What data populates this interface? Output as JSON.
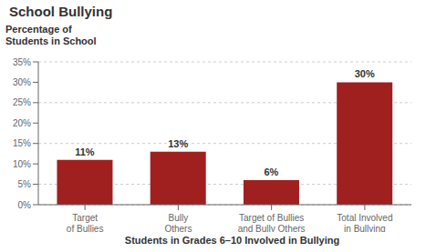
{
  "chart_data": {
    "type": "bar",
    "title": "School Bullying",
    "ylabel": "Percentage of\nStudents in School",
    "xlabel": "Students in Grades 6–10 Involved in Bullying",
    "categories": [
      "Target\nof Bullies",
      "Bully\nOthers",
      "Target of Bullies\nand Bully Others",
      "Total Involved\nin Bullying"
    ],
    "values": [
      11,
      13,
      6,
      30
    ],
    "value_labels": [
      "11%",
      "13%",
      "6%",
      "30%"
    ],
    "data_labels": true,
    "color": "#A02020",
    "ylim": [
      0,
      35
    ],
    "yticks": [
      {
        "value": 0,
        "label": "0%"
      },
      {
        "value": 5,
        "label": "5%"
      },
      {
        "value": 10,
        "label": "10%"
      },
      {
        "value": 15,
        "label": "15%"
      },
      {
        "value": 20,
        "label": "20%"
      },
      {
        "value": 25,
        "label": "25%"
      },
      {
        "value": 30,
        "label": "30%"
      },
      {
        "value": 35,
        "label": "35%"
      }
    ],
    "grid": true
  }
}
